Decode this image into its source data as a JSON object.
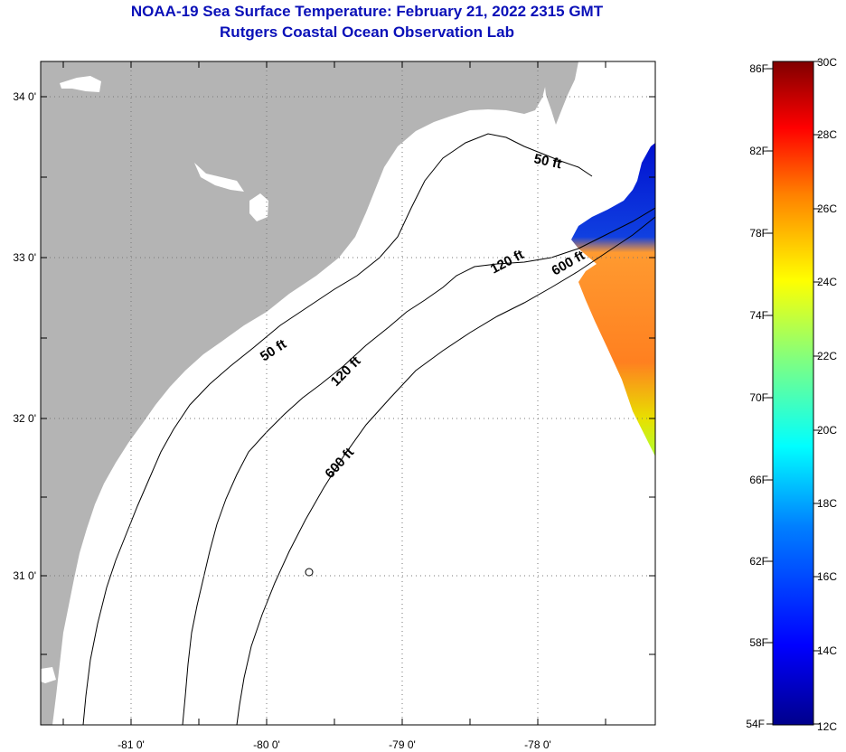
{
  "header": {
    "title": "NOAA-19 Sea Surface Temperature:  February 21, 2022 2315 GMT",
    "subtitle": "Rutgers Coastal Ocean Observation Lab"
  },
  "map": {
    "lon_labels": [
      "-81 0'",
      "-80 0'",
      "-79 0'",
      "-78 0'"
    ],
    "lat_labels": [
      "34 0'",
      "33 0'",
      "32 0'",
      "31 0'"
    ],
    "land_color": "#b4b4b4",
    "ocean_color": "#ffffff",
    "contours": [
      {
        "label": "50 ft"
      },
      {
        "label": "120 ft"
      },
      {
        "label": "600 ft"
      },
      {
        "label": "50 ft"
      },
      {
        "label": "120 ft"
      },
      {
        "label": "600 ft"
      }
    ]
  },
  "colorbar": {
    "f_labels": [
      "86F",
      "82F",
      "78F",
      "74F",
      "70F",
      "66F",
      "62F",
      "58F",
      "54F"
    ],
    "c_labels": [
      "30C",
      "28C",
      "26C",
      "24C",
      "22C",
      "20C",
      "18C",
      "16C",
      "14C",
      "12C"
    ],
    "range_f": [
      54,
      86
    ],
    "range_c": [
      12,
      30
    ],
    "colors": [
      "#00008b",
      "#0000ff",
      "#0080ff",
      "#00ffff",
      "#80ff80",
      "#ffff00",
      "#ff8000",
      "#ff0000",
      "#800000"
    ]
  }
}
